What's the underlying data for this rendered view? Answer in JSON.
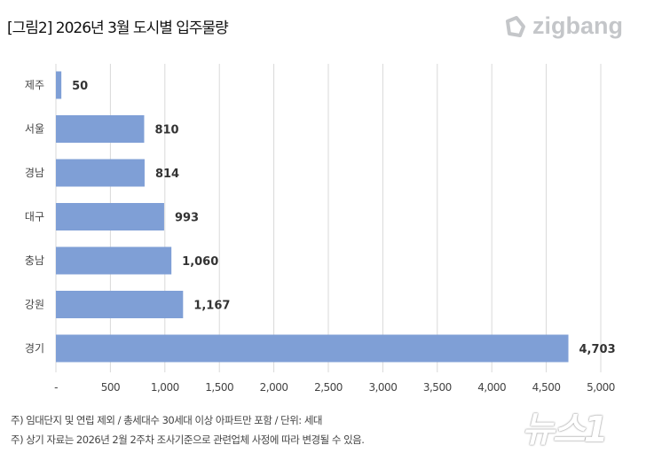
{
  "title": "[그림2] 2026년 3월 도시별 입주물량",
  "logo": "zigbang",
  "watermark": "뉴스1",
  "notes": [
    "주) 임대단지 및 연립 제외 / 총세대수 30세대 이상 아파트만 포함 / 단위: 세대",
    "주) 상기 자료는 2026년 2월 2주차 조사기준으로 관련업체 사정에 따라 변경될 수 있음."
  ],
  "chart_data": {
    "type": "bar",
    "orientation": "horizontal",
    "categories": [
      "제주",
      "서울",
      "경남",
      "대구",
      "충남",
      "강원",
      "경기"
    ],
    "values": [
      50,
      810,
      814,
      993,
      1060,
      1167,
      4703
    ],
    "data_labels": [
      "50",
      "810",
      "814",
      "993",
      "1,060",
      "1,167",
      "4,703"
    ],
    "xlim": [
      0,
      5000
    ],
    "xticks": [
      "-",
      "500",
      "1,000",
      "1,500",
      "2,000",
      "2,500",
      "3,000",
      "3,500",
      "4,000",
      "4,500",
      "5,000"
    ],
    "grid": true,
    "bar_color": "#7f9fd6"
  }
}
